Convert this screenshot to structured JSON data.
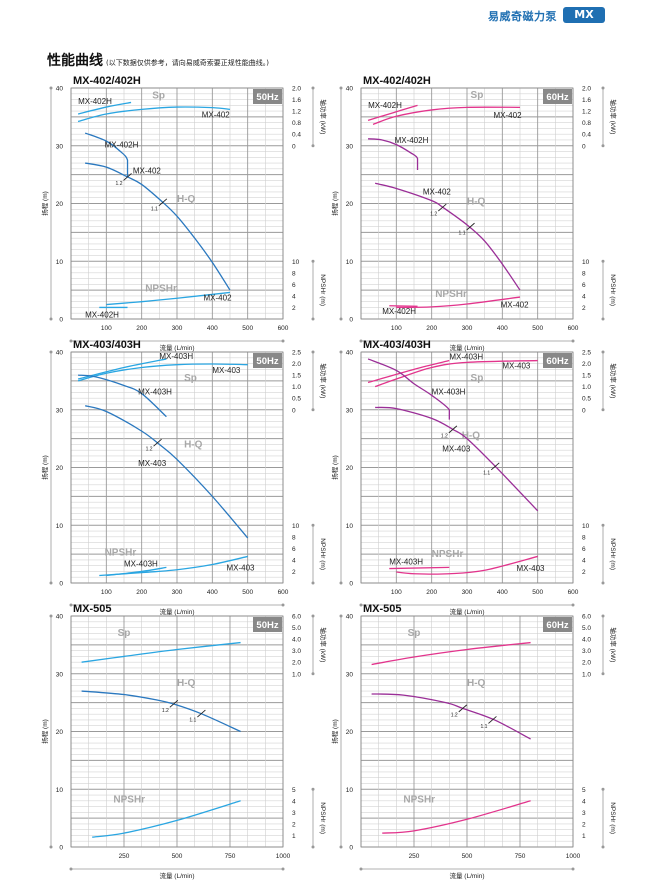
{
  "header": {
    "brand": "易威奇磁力泵",
    "badge": "MX"
  },
  "section": {
    "title": "性能曲线",
    "subtitle": "(以下数据仅供参考，请向易威奇索要正规性能曲线。)"
  },
  "axis_titles": {
    "y_left": "扬程 (m)",
    "y_right_power": "轴功率 (kW)",
    "y_right_npshr": "NPSHr (m)",
    "x": "流量 (L/min)"
  },
  "curve_names": {
    "sp": "Sp",
    "hq": "H-Q",
    "npshr": "NPSHr"
  },
  "colors": {
    "50Hz": {
      "hq": "#2a78bf",
      "sp": "#2aa6e2"
    },
    "60Hz": {
      "hq": "#9a2e97",
      "sp": "#e2348c"
    },
    "badge_bg": "#888888",
    "brand": "#1f6fb2",
    "curve_name": "#a8a8a8"
  },
  "chart_data": [
    {
      "type": "line",
      "title": "MX-402/402H",
      "frequency": "50Hz",
      "xlim": [
        0,
        600
      ],
      "xticks": [
        "100",
        "200",
        "300",
        "400",
        "500",
        "600"
      ],
      "ylim": [
        0,
        40
      ],
      "yticks": [
        "0",
        "10",
        "20",
        "30",
        "40"
      ],
      "power_axis": {
        "range": [
          0,
          2.0
        ],
        "ticks": [
          "0",
          "0.4",
          "0.8",
          "1.2",
          "1.6",
          "2.0"
        ]
      },
      "npshr_axis": {
        "range": [
          0,
          10
        ],
        "ticks": [
          "2",
          "4",
          "6",
          "8",
          "10"
        ]
      },
      "series": [
        {
          "curve": "sp",
          "model": "MX-402H",
          "points": [
            [
              20,
              1.1
            ],
            [
              100,
              1.34
            ],
            [
              170,
              1.5
            ]
          ]
        },
        {
          "curve": "sp",
          "model": "MX-402",
          "points": [
            [
              20,
              0.84
            ],
            [
              100,
              1.1
            ],
            [
              200,
              1.26
            ],
            [
              300,
              1.34
            ],
            [
              400,
              1.32
            ],
            [
              450,
              1.26
            ]
          ]
        },
        {
          "curve": "hq",
          "model": "MX-402H",
          "points": [
            [
              40,
              32.2
            ],
            [
              100,
              30.8
            ],
            [
              140,
              29
            ],
            [
              160,
              27.5
            ],
            [
              160,
              24.7
            ]
          ]
        },
        {
          "curve": "hq",
          "model": "MX-402",
          "points": [
            [
              40,
              27
            ],
            [
              100,
              26.3
            ],
            [
              160,
              24.6
            ],
            [
              200,
              23.3
            ],
            [
              260,
              20.2
            ],
            [
              300,
              17.8
            ],
            [
              350,
              14
            ],
            [
              400,
              9.8
            ],
            [
              450,
              5
            ]
          ]
        },
        {
          "curve": "npshr",
          "model": "MX-402",
          "points": [
            [
              100,
              2.5
            ],
            [
              200,
              3
            ],
            [
              300,
              3.6
            ],
            [
              450,
              4.6
            ]
          ]
        },
        {
          "curve": "npshr",
          "model": "MX-402H",
          "points": [
            [
              80,
              2
            ],
            [
              160,
              2
            ]
          ]
        }
      ],
      "marks": [
        {
          "label": "1.2",
          "x": 160,
          "y": 24.6
        },
        {
          "label": "1.1",
          "x": 260,
          "y": 20.2
        }
      ]
    },
    {
      "type": "line",
      "title": "MX-402/402H",
      "frequency": "60Hz",
      "xlim": [
        0,
        600
      ],
      "xticks": [
        "100",
        "200",
        "300",
        "400",
        "500",
        "600"
      ],
      "ylim": [
        0,
        40
      ],
      "yticks": [
        "0",
        "10",
        "20",
        "30",
        "40"
      ],
      "power_axis": {
        "range": [
          0,
          2.0
        ],
        "ticks": [
          "0",
          "0.4",
          "0.8",
          "1.2",
          "1.6",
          "2.0"
        ]
      },
      "npshr_axis": {
        "range": [
          0,
          10
        ],
        "ticks": [
          "2",
          "4",
          "6",
          "8",
          "10"
        ]
      },
      "series": [
        {
          "curve": "sp",
          "model": "MX-402H",
          "points": [
            [
              20,
              0.88
            ],
            [
              90,
              1.14
            ],
            [
              160,
              1.4
            ]
          ]
        },
        {
          "curve": "sp",
          "model": "MX-402",
          "points": [
            [
              34,
              0.74
            ],
            [
              100,
              1.02
            ],
            [
              200,
              1.24
            ],
            [
              300,
              1.33
            ],
            [
              450,
              1.33
            ]
          ]
        },
        {
          "curve": "hq",
          "model": "MX-402H",
          "points": [
            [
              20,
              31.2
            ],
            [
              60,
              31
            ],
            [
              100,
              30.2
            ],
            [
              140,
              28.8
            ],
            [
              160,
              27.8
            ],
            [
              160,
              25.8
            ]
          ]
        },
        {
          "curve": "hq",
          "model": "MX-402",
          "points": [
            [
              40,
              23.5
            ],
            [
              100,
              22.6
            ],
            [
              200,
              20.5
            ],
            [
              230,
              19.4
            ],
            [
              300,
              16.3
            ],
            [
              350,
              13.5
            ],
            [
              400,
              9.5
            ],
            [
              450,
              5
            ]
          ]
        },
        {
          "curve": "npshr",
          "model": "MX-402",
          "points": [
            [
              100,
              2
            ],
            [
              200,
              2.1
            ],
            [
              300,
              2.6
            ],
            [
              450,
              3.8
            ]
          ]
        },
        {
          "curve": "npshr",
          "model": "MX-402H",
          "points": [
            [
              80,
              2.3
            ],
            [
              160,
              2.2
            ]
          ]
        }
      ],
      "marks": [
        {
          "label": "1.2",
          "x": 230,
          "y": 19.3
        },
        {
          "label": "1.1",
          "x": 310,
          "y": 16
        }
      ]
    },
    {
      "type": "line",
      "title": "MX-403/403H",
      "frequency": "50Hz",
      "xlim": [
        0,
        600
      ],
      "xticks": [
        "100",
        "200",
        "300",
        "400",
        "500",
        "600"
      ],
      "ylim": [
        0,
        40
      ],
      "yticks": [
        "0",
        "10",
        "20",
        "30",
        "40"
      ],
      "power_axis": {
        "range": [
          0,
          2.5
        ],
        "ticks": [
          "0",
          "0.5",
          "1.0",
          "1.5",
          "2.0",
          "2.5"
        ]
      },
      "npshr_axis": {
        "range": [
          0,
          10
        ],
        "ticks": [
          "2",
          "4",
          "6",
          "8",
          "10"
        ]
      },
      "series": [
        {
          "curve": "sp",
          "model": "MX-403H",
          "points": [
            [
              20,
              1.33
            ],
            [
              150,
              1.83
            ],
            [
              270,
              2.2
            ]
          ]
        },
        {
          "curve": "sp",
          "model": "MX-403",
          "points": [
            [
              20,
              1.25
            ],
            [
              100,
              1.58
            ],
            [
              200,
              1.83
            ],
            [
              300,
              1.95
            ],
            [
              400,
              1.98
            ],
            [
              500,
              1.95
            ]
          ]
        },
        {
          "curve": "hq",
          "model": "MX-403H",
          "points": [
            [
              20,
              36
            ],
            [
              70,
              35.7
            ],
            [
              150,
              34.2
            ],
            [
              200,
              32.8
            ],
            [
              270,
              28.8
            ]
          ]
        },
        {
          "curve": "hq",
          "model": "MX-403",
          "points": [
            [
              40,
              30.7
            ],
            [
              100,
              29.7
            ],
            [
              200,
              26.3
            ],
            [
              250,
              24
            ],
            [
              300,
              21.4
            ],
            [
              400,
              15
            ],
            [
              500,
              7.8
            ]
          ]
        },
        {
          "curve": "npshr",
          "model": "MX-403H",
          "points": [
            [
              100,
              1.3
            ],
            [
              200,
              2.0
            ],
            [
              270,
              2.7
            ]
          ]
        },
        {
          "curve": "npshr",
          "model": "MX-403",
          "points": [
            [
              80,
              1.3
            ],
            [
              200,
              1.8
            ],
            [
              300,
              2.3
            ],
            [
              400,
              3.2
            ],
            [
              500,
              4.6
            ]
          ]
        }
      ],
      "marks": [
        {
          "label": "1.2",
          "x": 245,
          "y": 24.3
        }
      ]
    },
    {
      "type": "line",
      "title": "MX-403/403H",
      "frequency": "60Hz",
      "xlim": [
        0,
        600
      ],
      "xticks": [
        "100",
        "200",
        "300",
        "400",
        "500",
        "600"
      ],
      "ylim": [
        0,
        40
      ],
      "yticks": [
        "0",
        "10",
        "20",
        "30",
        "40"
      ],
      "power_axis": {
        "range": [
          0,
          2.5
        ],
        "ticks": [
          "0",
          "0.5",
          "1.0",
          "1.5",
          "2.0",
          "2.5"
        ]
      },
      "npshr_axis": {
        "range": [
          0,
          10
        ],
        "ticks": [
          "2",
          "4",
          "6",
          "8",
          "10"
        ]
      },
      "series": [
        {
          "curve": "sp",
          "model": "MX-403H",
          "points": [
            [
              20,
              1.18
            ],
            [
              150,
              1.75
            ],
            [
              250,
              2.13
            ]
          ]
        },
        {
          "curve": "sp",
          "model": "MX-403",
          "points": [
            [
              40,
              1.0
            ],
            [
              100,
              1.33
            ],
            [
              200,
              1.83
            ],
            [
              300,
              2.05
            ],
            [
              500,
              2.13
            ]
          ]
        },
        {
          "curve": "hq",
          "model": "MX-403H",
          "points": [
            [
              20,
              38.8
            ],
            [
              100,
              36.8
            ],
            [
              150,
              34.5
            ],
            [
              200,
              32.5
            ],
            [
              250,
              30
            ],
            [
              250,
              28.3
            ]
          ]
        },
        {
          "curve": "hq",
          "model": "MX-403",
          "points": [
            [
              40,
              30.4
            ],
            [
              100,
              30.2
            ],
            [
              200,
              28.5
            ],
            [
              260,
              26.6
            ],
            [
              300,
              25
            ],
            [
              380,
              20.2
            ],
            [
              500,
              12.5
            ]
          ]
        },
        {
          "curve": "npshr",
          "model": "MX-403H",
          "points": [
            [
              80,
              2.5
            ],
            [
              250,
              2.7
            ]
          ]
        },
        {
          "curve": "npshr",
          "model": "MX-403",
          "points": [
            [
              100,
              1.9
            ],
            [
              150,
              1.6
            ],
            [
              250,
              1.6
            ],
            [
              350,
              2.2
            ],
            [
              500,
              4.6
            ]
          ]
        }
      ],
      "marks": [
        {
          "label": "1.2",
          "x": 260,
          "y": 26.6
        },
        {
          "label": "1.1",
          "x": 380,
          "y": 20.2
        }
      ]
    },
    {
      "type": "line",
      "title": "MX-505",
      "frequency": "50Hz",
      "xlim": [
        0,
        1000
      ],
      "xticks": [
        "250",
        "500",
        "750",
        "1000"
      ],
      "ylim": [
        0,
        40
      ],
      "yticks": [
        "0",
        "10",
        "20",
        "30",
        "40"
      ],
      "power_axis": {
        "range": [
          1.0,
          6.0
        ],
        "ticks": [
          "1.0",
          "2.0",
          "3.0",
          "4.0",
          "5.0",
          "6.0"
        ]
      },
      "npshr_axis": {
        "range": [
          0,
          5
        ],
        "ticks": [
          "1",
          "2",
          "3",
          "4",
          "5"
        ]
      },
      "series": [
        {
          "curve": "sp",
          "points": [
            [
              50,
              2.0
            ],
            [
              250,
              2.5
            ],
            [
              500,
              3.1
            ],
            [
              800,
              3.7
            ]
          ]
        },
        {
          "curve": "hq",
          "points": [
            [
              50,
              27
            ],
            [
              250,
              26.4
            ],
            [
              400,
              25.5
            ],
            [
              490,
              24.7
            ],
            [
              620,
              23
            ],
            [
              800,
              20
            ]
          ]
        },
        {
          "curve": "npshr",
          "points": [
            [
              100,
              0.85
            ],
            [
              250,
              1.2
            ],
            [
              500,
              2.3
            ],
            [
              800,
              4.0
            ]
          ]
        }
      ],
      "marks": [
        {
          "label": "1.2",
          "x": 485,
          "y": 24.8
        },
        {
          "label": "1.1",
          "x": 615,
          "y": 23.1
        }
      ]
    },
    {
      "type": "line",
      "title": "MX-505",
      "frequency": "60Hz",
      "xlim": [
        0,
        1000
      ],
      "xticks": [
        "250",
        "500",
        "750",
        "1000"
      ],
      "ylim": [
        0,
        40
      ],
      "yticks": [
        "0",
        "10",
        "20",
        "30",
        "40"
      ],
      "power_axis": {
        "range": [
          1.0,
          6.0
        ],
        "ticks": [
          "1.0",
          "2.0",
          "3.0",
          "4.0",
          "5.0",
          "6.0"
        ]
      },
      "npshr_axis": {
        "range": [
          0,
          5
        ],
        "ticks": [
          "1",
          "2",
          "3",
          "4",
          "5"
        ]
      },
      "series": [
        {
          "curve": "sp",
          "points": [
            [
              50,
              1.8
            ],
            [
              250,
              2.45
            ],
            [
              500,
              3.1
            ],
            [
              800,
              3.7
            ]
          ]
        },
        {
          "curve": "hq",
          "points": [
            [
              50,
              26.5
            ],
            [
              200,
              26.3
            ],
            [
              400,
              25
            ],
            [
              480,
              24
            ],
            [
              630,
              22
            ],
            [
              800,
              18.7
            ]
          ]
        },
        {
          "curve": "npshr",
          "points": [
            [
              100,
              1.2
            ],
            [
              250,
              1.4
            ],
            [
              500,
              2.4
            ],
            [
              800,
              4.0
            ]
          ]
        }
      ],
      "marks": [
        {
          "label": "1.2",
          "x": 480,
          "y": 24
        },
        {
          "label": "1.1",
          "x": 620,
          "y": 22
        }
      ]
    }
  ]
}
